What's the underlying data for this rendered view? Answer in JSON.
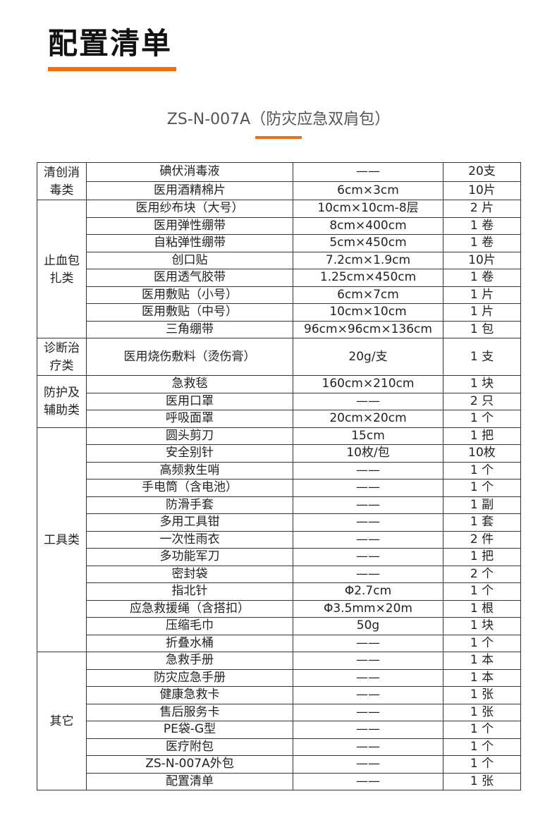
{
  "header": {
    "title": "配置清单",
    "subtitle": "ZS-N-007A（防灾应急双肩包）",
    "accent_color": "#f07010"
  },
  "table": {
    "groups": [
      {
        "category": "清创消\n毒类",
        "items": [
          [
            "碘伏消毒液",
            "——",
            "20支"
          ],
          [
            "医用酒精棉片",
            "6cm×3cm",
            "10片"
          ]
        ]
      },
      {
        "category": "止血包\n扎类",
        "items": [
          [
            "医用纱布块（大号）",
            "10cm×10cm-8层",
            "2 片"
          ],
          [
            "医用弹性绷带",
            "8cm×400cm",
            "1 卷"
          ],
          [
            "自粘弹性绷带",
            "5cm×450cm",
            "1 卷"
          ],
          [
            "创口贴",
            "7.2cm×1.9cm",
            "10片"
          ],
          [
            "医用透气胶带",
            "1.25cm×450cm",
            "1 卷"
          ],
          [
            "医用敷贴（小号）",
            "6cm×7cm",
            "1 片"
          ],
          [
            "医用敷贴（中号）",
            "10cm×10cm",
            "1 片"
          ],
          [
            "三角绷带",
            "96cm×96cm×136cm",
            "1 包"
          ]
        ]
      },
      {
        "category": "诊断治\n疗类",
        "tall": true,
        "items": [
          [
            "医用烧伤敷料（烫伤膏）",
            "20g/支",
            "1 支"
          ]
        ]
      },
      {
        "category": "防护及\n辅助类",
        "items": [
          [
            "急救毯",
            "160cm×210cm",
            "1 块"
          ],
          [
            "医用口罩",
            "——",
            "2 只"
          ],
          [
            "呼吸面罩",
            "20cm×20cm",
            "1 个"
          ]
        ]
      },
      {
        "category": "工具类",
        "items": [
          [
            "圆头剪刀",
            "15cm",
            "1 把"
          ],
          [
            "安全别针",
            "10枚/包",
            "10枚"
          ],
          [
            "高频救生哨",
            "——",
            "1 个"
          ],
          [
            "手电筒（含电池）",
            "——",
            "1 个"
          ],
          [
            "防滑手套",
            "——",
            "1 副"
          ],
          [
            "多用工具钳",
            "——",
            "1 套"
          ],
          [
            "一次性雨衣",
            "——",
            "2 件"
          ],
          [
            "多功能军刀",
            "——",
            "1 把"
          ],
          [
            "密封袋",
            "——",
            "2 个"
          ],
          [
            "指北针",
            "Φ2.7cm",
            "1 个"
          ],
          [
            "应急救援绳（含搭扣）",
            "Φ3.5mm×20m",
            "1 根"
          ],
          [
            "压缩毛巾",
            "50g",
            "1 块"
          ],
          [
            "折叠水桶",
            "——",
            "1 个"
          ]
        ]
      },
      {
        "category": "其它",
        "items": [
          [
            "急救手册",
            "——",
            "1 本"
          ],
          [
            "防灾应急手册",
            "——",
            "1 本"
          ],
          [
            "健康急救卡",
            "——",
            "1 张"
          ],
          [
            "售后服务卡",
            "——",
            "1 张"
          ],
          [
            "PE袋-G型",
            "——",
            "1 个"
          ],
          [
            "医疗附包",
            "——",
            "1 个"
          ],
          [
            "ZS-N-007A外包",
            "——",
            "1 个"
          ],
          [
            "配置清单",
            "——",
            "1 张"
          ]
        ]
      }
    ]
  }
}
